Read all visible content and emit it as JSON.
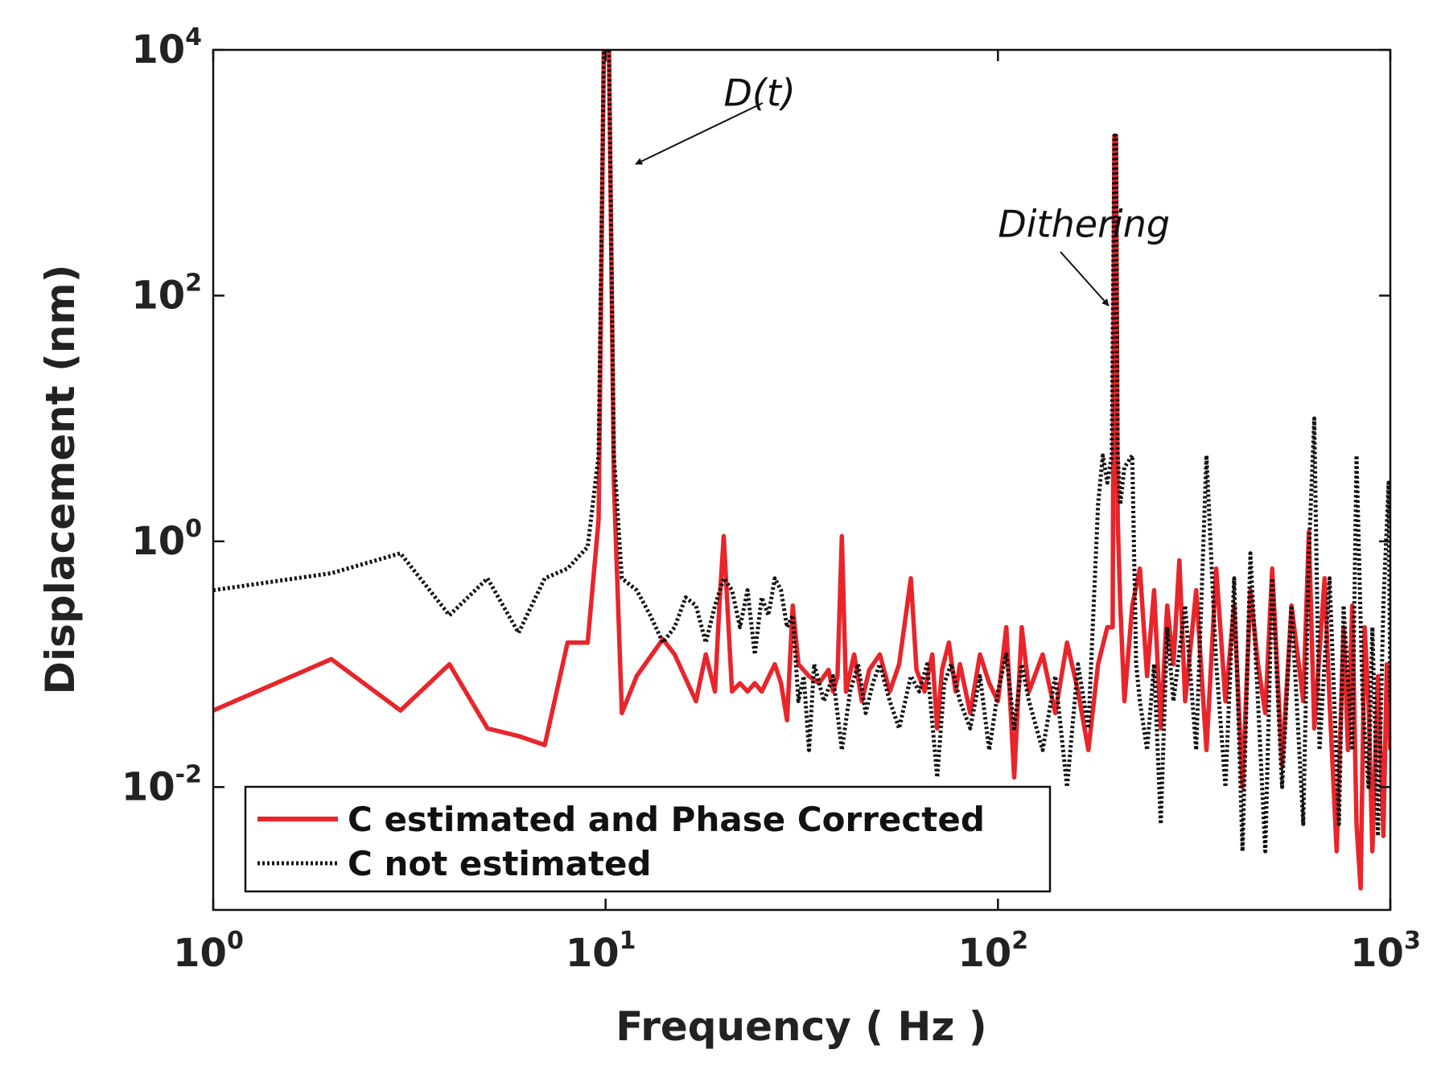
{
  "chart_data": {
    "type": "line",
    "title": "",
    "xlabel": "Frequency ( Hz )",
    "ylabel": "Displacement (nm)",
    "xscale": "log",
    "yscale": "log",
    "xlim": [
      1,
      1000
    ],
    "ylim": [
      0.001,
      10000
    ],
    "grid": false,
    "legend_position": "bottom-left",
    "x_ticks": [
      {
        "base": "10",
        "exp": "0",
        "value": 1
      },
      {
        "base": "10",
        "exp": "1",
        "value": 10
      },
      {
        "base": "10",
        "exp": "2",
        "value": 100
      },
      {
        "base": "10",
        "exp": "3",
        "value": 1000
      }
    ],
    "y_ticks": [
      {
        "base": "10",
        "exp": "-2",
        "value": 0.01
      },
      {
        "base": "10",
        "exp": "0",
        "value": 1
      },
      {
        "base": "10",
        "exp": "2",
        "value": 100
      },
      {
        "base": "10",
        "exp": "4",
        "value": 10000
      }
    ],
    "annotations": [
      {
        "text": "D(t)",
        "x": 10,
        "y": 10000,
        "text_at": [
          20,
          3500
        ]
      },
      {
        "text": "Dithering",
        "x": 200,
        "y": 150,
        "text_at": [
          100,
          300
        ]
      }
    ],
    "series": [
      {
        "name": "C estimated and Phase Corrected",
        "color": "#e8252b",
        "style": "solid",
        "points": [
          [
            1,
            0.042
          ],
          [
            2,
            0.11
          ],
          [
            3,
            0.042
          ],
          [
            4,
            0.1
          ],
          [
            5,
            0.03
          ],
          [
            6,
            0.026
          ],
          [
            7,
            0.022
          ],
          [
            8,
            0.15
          ],
          [
            9,
            0.15
          ],
          [
            9.6,
            1.5
          ],
          [
            9.9,
            10000
          ],
          [
            10,
            10000
          ],
          [
            10.2,
            10000
          ],
          [
            10.5,
            3
          ],
          [
            11,
            0.04
          ],
          [
            12,
            0.08
          ],
          [
            14,
            0.16
          ],
          [
            15,
            0.12
          ],
          [
            17,
            0.05
          ],
          [
            18,
            0.12
          ],
          [
            19,
            0.06
          ],
          [
            19.5,
            0.3
          ],
          [
            20,
            1.1
          ],
          [
            21,
            0.06
          ],
          [
            22,
            0.07
          ],
          [
            23,
            0.06
          ],
          [
            24,
            0.07
          ],
          [
            25,
            0.06
          ],
          [
            27,
            0.1
          ],
          [
            28,
            0.07
          ],
          [
            29,
            0.035
          ],
          [
            30,
            0.3
          ],
          [
            31,
            0.1
          ],
          [
            33,
            0.08
          ],
          [
            35,
            0.07
          ],
          [
            37,
            0.09
          ],
          [
            38,
            0.06
          ],
          [
            39,
            0.08
          ],
          [
            40,
            1.1
          ],
          [
            41,
            0.06
          ],
          [
            43,
            0.12
          ],
          [
            45,
            0.05
          ],
          [
            47,
            0.09
          ],
          [
            50,
            0.12
          ],
          [
            53,
            0.06
          ],
          [
            56,
            0.1
          ],
          [
            60,
            0.5
          ],
          [
            62,
            0.09
          ],
          [
            65,
            0.06
          ],
          [
            68,
            0.12
          ],
          [
            70,
            0.03
          ],
          [
            72,
            0.09
          ],
          [
            75,
            0.15
          ],
          [
            78,
            0.06
          ],
          [
            80,
            0.1
          ],
          [
            85,
            0.04
          ],
          [
            90,
            0.12
          ],
          [
            95,
            0.07
          ],
          [
            100,
            0.05
          ],
          [
            105,
            0.2
          ],
          [
            110,
            0.012
          ],
          [
            115,
            0.2
          ],
          [
            120,
            0.06
          ],
          [
            130,
            0.12
          ],
          [
            140,
            0.04
          ],
          [
            150,
            0.15
          ],
          [
            160,
            0.06
          ],
          [
            170,
            0.02
          ],
          [
            180,
            0.1
          ],
          [
            190,
            0.2
          ],
          [
            196,
            0.2
          ],
          [
            198,
            2000
          ],
          [
            200,
            2000
          ],
          [
            202,
            1.5
          ],
          [
            205,
            0.3
          ],
          [
            210,
            0.05
          ],
          [
            220,
            0.3
          ],
          [
            230,
            0.6
          ],
          [
            240,
            0.08
          ],
          [
            250,
            0.4
          ],
          [
            260,
            0.03
          ],
          [
            270,
            0.3
          ],
          [
            280,
            0.1
          ],
          [
            290,
            0.7
          ],
          [
            300,
            0.05
          ],
          [
            320,
            0.4
          ],
          [
            340,
            0.02
          ],
          [
            360,
            0.6
          ],
          [
            380,
            0.05
          ],
          [
            400,
            0.3
          ],
          [
            420,
            0.01
          ],
          [
            440,
            0.4
          ],
          [
            460,
            0.1
          ],
          [
            480,
            0.04
          ],
          [
            500,
            0.6
          ],
          [
            530,
            0.015
          ],
          [
            560,
            0.3
          ],
          [
            600,
            0.05
          ],
          [
            620,
            1.2
          ],
          [
            640,
            0.03
          ],
          [
            680,
            0.5
          ],
          [
            700,
            0.05
          ],
          [
            730,
            0.003
          ],
          [
            760,
            0.2
          ],
          [
            780,
            0.02
          ],
          [
            800,
            0.3
          ],
          [
            820,
            0.005
          ],
          [
            840,
            0.0015
          ],
          [
            860,
            0.2
          ],
          [
            880,
            0.05
          ],
          [
            900,
            0.003
          ],
          [
            930,
            0.08
          ],
          [
            960,
            0.004
          ],
          [
            980,
            0.1
          ],
          [
            1000,
            0.02
          ]
        ]
      },
      {
        "name": "C not estimated",
        "color": "#111111",
        "style": "dotted",
        "points": [
          [
            1,
            0.4
          ],
          [
            2,
            0.55
          ],
          [
            3,
            0.8
          ],
          [
            4,
            0.25
          ],
          [
            5,
            0.5
          ],
          [
            6,
            0.18
          ],
          [
            7,
            0.5
          ],
          [
            8,
            0.6
          ],
          [
            9,
            0.9
          ],
          [
            9.6,
            5
          ],
          [
            9.9,
            10000
          ],
          [
            10,
            10000
          ],
          [
            10.2,
            10000
          ],
          [
            10.5,
            5
          ],
          [
            11,
            0.5
          ],
          [
            12,
            0.4
          ],
          [
            13,
            0.25
          ],
          [
            14,
            0.15
          ],
          [
            15,
            0.2
          ],
          [
            16,
            0.35
          ],
          [
            17,
            0.3
          ],
          [
            18,
            0.15
          ],
          [
            19,
            0.3
          ],
          [
            20,
            0.5
          ],
          [
            21,
            0.4
          ],
          [
            22,
            0.2
          ],
          [
            23,
            0.4
          ],
          [
            24,
            0.12
          ],
          [
            25,
            0.35
          ],
          [
            26,
            0.25
          ],
          [
            27,
            0.5
          ],
          [
            28,
            0.4
          ],
          [
            29,
            0.2
          ],
          [
            30,
            0.25
          ],
          [
            31,
            0.05
          ],
          [
            32,
            0.08
          ],
          [
            33,
            0.02
          ],
          [
            34,
            0.1
          ],
          [
            36,
            0.05
          ],
          [
            38,
            0.08
          ],
          [
            40,
            0.02
          ],
          [
            42,
            0.06
          ],
          [
            44,
            0.1
          ],
          [
            46,
            0.04
          ],
          [
            48,
            0.07
          ],
          [
            50,
            0.1
          ],
          [
            53,
            0.05
          ],
          [
            56,
            0.03
          ],
          [
            60,
            0.08
          ],
          [
            63,
            0.06
          ],
          [
            66,
            0.1
          ],
          [
            70,
            0.012
          ],
          [
            73,
            0.07
          ],
          [
            76,
            0.1
          ],
          [
            80,
            0.05
          ],
          [
            85,
            0.03
          ],
          [
            90,
            0.08
          ],
          [
            95,
            0.02
          ],
          [
            100,
            0.06
          ],
          [
            105,
            0.12
          ],
          [
            110,
            0.03
          ],
          [
            115,
            0.1
          ],
          [
            120,
            0.05
          ],
          [
            130,
            0.02
          ],
          [
            140,
            0.08
          ],
          [
            150,
            0.01
          ],
          [
            160,
            0.1
          ],
          [
            170,
            0.03
          ],
          [
            180,
            2
          ],
          [
            185,
            5
          ],
          [
            190,
            3
          ],
          [
            195,
            5
          ],
          [
            198,
            2000
          ],
          [
            200,
            2000
          ],
          [
            202,
            5
          ],
          [
            205,
            2
          ],
          [
            210,
            4
          ],
          [
            220,
            5
          ],
          [
            225,
            0.1
          ],
          [
            230,
            0.05
          ],
          [
            240,
            0.02
          ],
          [
            250,
            0.1
          ],
          [
            260,
            0.005
          ],
          [
            270,
            0.2
          ],
          [
            280,
            0.05
          ],
          [
            300,
            0.3
          ],
          [
            320,
            0.02
          ],
          [
            340,
            5
          ],
          [
            360,
            0.1
          ],
          [
            380,
            0.01
          ],
          [
            400,
            0.5
          ],
          [
            420,
            0.003
          ],
          [
            440,
            0.8
          ],
          [
            460,
            0.05
          ],
          [
            480,
            0.003
          ],
          [
            500,
            0.5
          ],
          [
            530,
            0.01
          ],
          [
            560,
            0.3
          ],
          [
            600,
            0.005
          ],
          [
            620,
            0.8
          ],
          [
            640,
            10
          ],
          [
            660,
            0.02
          ],
          [
            700,
            0.5
          ],
          [
            740,
            0.005
          ],
          [
            760,
            0.3
          ],
          [
            800,
            0.02
          ],
          [
            820,
            5
          ],
          [
            850,
            0.05
          ],
          [
            880,
            0.01
          ],
          [
            900,
            0.2
          ],
          [
            930,
            0.004
          ],
          [
            960,
            0.3
          ],
          [
            990,
            3
          ],
          [
            1000,
            0.05
          ]
        ]
      }
    ]
  }
}
